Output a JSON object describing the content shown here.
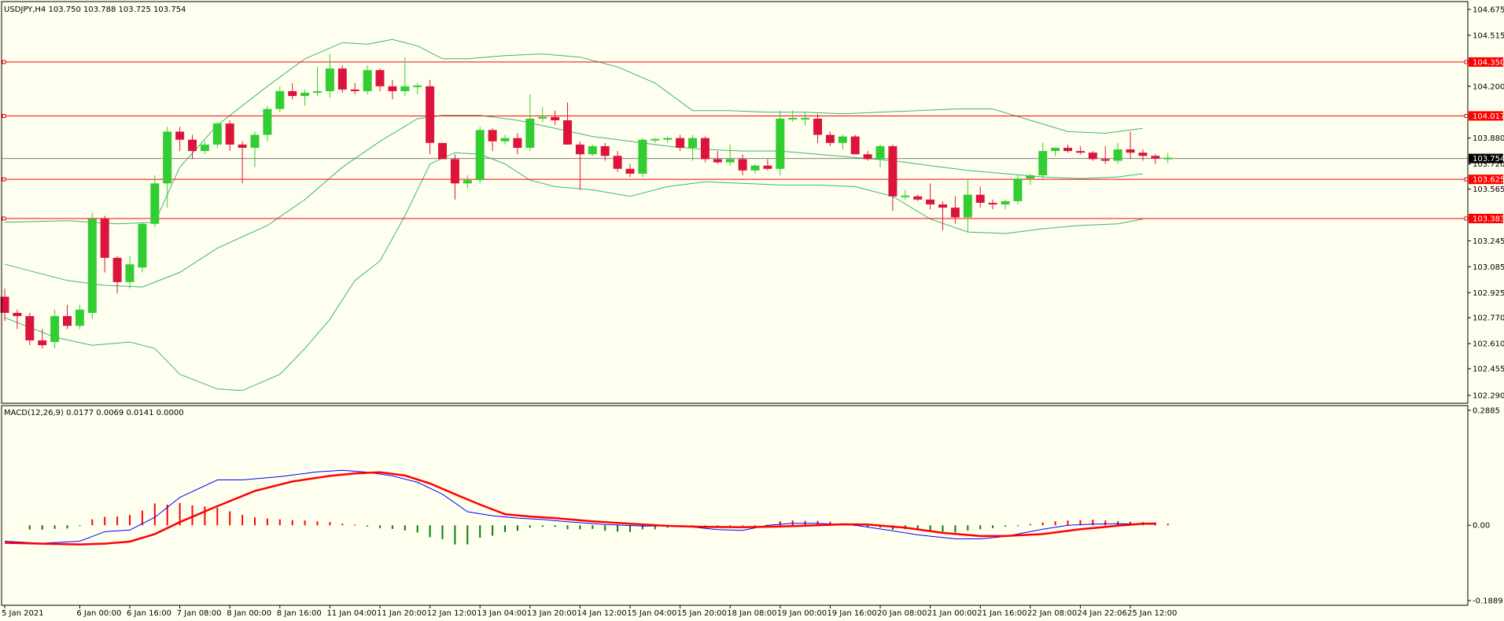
{
  "chart_data": {
    "type": "candlestick",
    "symbol_header": "USDJPY,H4  103.750 103.788 103.725 103.754",
    "macd_header": "MACD(12,26,9) 0.0177 0.0069 0.0141 0.0000",
    "price_ylim": [
      102.29,
      104.675
    ],
    "macd_ylim": [
      -0.1889,
      0.2885
    ],
    "price_ticks": [
      "104.675",
      "104.515",
      "104.350",
      "104.200",
      "104.017",
      "103.880",
      "103.720",
      "103.565",
      "103.383",
      "103.245",
      "103.085",
      "102.925",
      "102.770",
      "102.610",
      "102.455",
      "102.290"
    ],
    "macd_ticks": [
      "0.2885",
      "0.00",
      "-0.1889"
    ],
    "x_labels": [
      {
        "i": 0,
        "text": "5 Jan 2021"
      },
      {
        "i": 6,
        "text": "6 Jan 00:00"
      },
      {
        "i": 10,
        "text": "6 Jan 16:00"
      },
      {
        "i": 14,
        "text": "7 Jan 08:00"
      },
      {
        "i": 18,
        "text": "8 Jan 00:00"
      },
      {
        "i": 22,
        "text": "8 Jan 16:00"
      },
      {
        "i": 26,
        "text": "11 Jan 04:00"
      },
      {
        "i": 30,
        "text": "11 Jan 20:00"
      },
      {
        "i": 34,
        "text": "12 Jan 12:00"
      },
      {
        "i": 38,
        "text": "13 Jan 04:00"
      },
      {
        "i": 42,
        "text": "13 Jan 20:00"
      },
      {
        "i": 46,
        "text": "14 Jan 12:00"
      },
      {
        "i": 50,
        "text": "15 Jan 04:00"
      },
      {
        "i": 54,
        "text": "15 Jan 20:00"
      },
      {
        "i": 58,
        "text": "18 Jan 08:00"
      },
      {
        "i": 62,
        "text": "19 Jan 00:00"
      },
      {
        "i": 66,
        "text": "19 Jan 16:00"
      },
      {
        "i": 70,
        "text": "20 Jan 08:00"
      },
      {
        "i": 74,
        "text": "21 Jan 00:00"
      },
      {
        "i": 78,
        "text": "21 Jan 16:00"
      },
      {
        "i": 82,
        "text": "22 Jan 08:00"
      },
      {
        "i": 86,
        "text": "24 Jan 22:06"
      },
      {
        "i": 90,
        "text": "25 Jan 12:00"
      }
    ],
    "current_price": {
      "value": 103.754,
      "label": "103.754"
    },
    "horizontal_lines": [
      {
        "value": 104.35,
        "label": "104.350"
      },
      {
        "value": 104.017,
        "label": "104.017"
      },
      {
        "value": 103.625,
        "label": "103.625"
      },
      {
        "value": 103.383,
        "label": "103.383"
      }
    ],
    "candles": [
      [
        102.9,
        102.95,
        102.75,
        102.8
      ],
      [
        102.8,
        102.82,
        102.7,
        102.78
      ],
      [
        102.78,
        102.8,
        102.6,
        102.63
      ],
      [
        102.63,
        102.7,
        102.58,
        102.6
      ],
      [
        102.62,
        102.82,
        102.58,
        102.78
      ],
      [
        102.78,
        102.85,
        102.7,
        102.72
      ],
      [
        102.72,
        102.85,
        102.7,
        102.82
      ],
      [
        102.8,
        103.42,
        102.76,
        103.38
      ],
      [
        103.38,
        103.4,
        103.05,
        103.14
      ],
      [
        103.14,
        103.15,
        102.92,
        102.99
      ],
      [
        102.99,
        103.15,
        102.95,
        103.1
      ],
      [
        103.08,
        103.36,
        103.05,
        103.35
      ],
      [
        103.35,
        103.65,
        103.33,
        103.6
      ],
      [
        103.6,
        103.95,
        103.45,
        103.92
      ],
      [
        103.92,
        103.95,
        103.8,
        103.87
      ],
      [
        103.87,
        103.9,
        103.75,
        103.8
      ],
      [
        103.8,
        103.86,
        103.78,
        103.84
      ],
      [
        103.84,
        103.98,
        103.82,
        103.97
      ],
      [
        103.97,
        103.99,
        103.8,
        103.84
      ],
      [
        103.84,
        103.86,
        103.6,
        103.82
      ],
      [
        103.82,
        103.92,
        103.7,
        103.9
      ],
      [
        103.9,
        104.08,
        103.86,
        104.06
      ],
      [
        104.06,
        104.2,
        104.04,
        104.17
      ],
      [
        104.17,
        104.22,
        104.12,
        104.14
      ],
      [
        104.14,
        104.18,
        104.08,
        104.16
      ],
      [
        104.16,
        104.32,
        104.14,
        104.17
      ],
      [
        104.17,
        104.4,
        104.13,
        104.31
      ],
      [
        104.31,
        104.33,
        104.16,
        104.18
      ],
      [
        104.18,
        104.22,
        104.15,
        104.17
      ],
      [
        104.17,
        104.33,
        104.15,
        104.3
      ],
      [
        104.3,
        104.31,
        104.17,
        104.2
      ],
      [
        104.2,
        104.24,
        104.12,
        104.17
      ],
      [
        104.17,
        104.38,
        104.14,
        104.2
      ],
      [
        104.2,
        104.22,
        104.15,
        104.2
      ],
      [
        104.2,
        104.24,
        103.78,
        103.85
      ],
      [
        103.85,
        103.85,
        103.75,
        103.75
      ],
      [
        103.75,
        103.78,
        103.5,
        103.6
      ],
      [
        103.6,
        103.65,
        103.57,
        103.62
      ],
      [
        103.62,
        103.95,
        103.6,
        103.93
      ],
      [
        103.93,
        103.94,
        103.8,
        103.86
      ],
      [
        103.86,
        103.9,
        103.84,
        103.88
      ],
      [
        103.88,
        103.91,
        103.78,
        103.82
      ],
      [
        103.82,
        104.15,
        103.8,
        104.0
      ],
      [
        104.0,
        104.07,
        103.98,
        104.01
      ],
      [
        104.01,
        104.05,
        103.96,
        103.99
      ],
      [
        103.99,
        104.1,
        103.84,
        103.84
      ],
      [
        103.84,
        103.86,
        103.56,
        103.78
      ],
      [
        103.78,
        103.84,
        103.77,
        103.83
      ],
      [
        103.83,
        103.85,
        103.74,
        103.77
      ],
      [
        103.77,
        103.8,
        103.67,
        103.69
      ],
      [
        103.69,
        103.72,
        103.64,
        103.66
      ],
      [
        103.66,
        103.88,
        103.64,
        103.87
      ],
      [
        103.87,
        103.88,
        103.85,
        103.87
      ],
      [
        103.87,
        103.89,
        103.85,
        103.88
      ],
      [
        103.88,
        103.9,
        103.8,
        103.82
      ],
      [
        103.82,
        103.9,
        103.74,
        103.88
      ],
      [
        103.88,
        103.89,
        103.73,
        103.75
      ],
      [
        103.75,
        103.8,
        103.72,
        103.73
      ],
      [
        103.73,
        103.84,
        103.71,
        103.75
      ],
      [
        103.75,
        103.78,
        103.65,
        103.68
      ],
      [
        103.68,
        103.72,
        103.66,
        103.71
      ],
      [
        103.71,
        103.75,
        103.68,
        103.69
      ],
      [
        103.69,
        104.05,
        103.65,
        104.0
      ],
      [
        104.0,
        104.05,
        103.98,
        104.0
      ],
      [
        104.0,
        104.04,
        103.96,
        104.0
      ],
      [
        104.0,
        104.03,
        103.85,
        103.9
      ],
      [
        103.9,
        103.92,
        103.83,
        103.85
      ],
      [
        103.85,
        103.9,
        103.81,
        103.89
      ],
      [
        103.89,
        103.9,
        103.78,
        103.78
      ],
      [
        103.78,
        103.8,
        103.74,
        103.75
      ],
      [
        103.75,
        103.84,
        103.7,
        103.83
      ],
      [
        103.83,
        103.84,
        103.43,
        103.52
      ],
      [
        103.52,
        103.56,
        103.5,
        103.52
      ],
      [
        103.52,
        103.53,
        103.49,
        103.5
      ],
      [
        103.5,
        103.6,
        103.44,
        103.47
      ],
      [
        103.47,
        103.49,
        103.31,
        103.45
      ],
      [
        103.45,
        103.52,
        103.35,
        103.39
      ],
      [
        103.39,
        103.62,
        103.3,
        103.53
      ],
      [
        103.53,
        103.58,
        103.45,
        103.48
      ],
      [
        103.48,
        103.5,
        103.44,
        103.47
      ],
      [
        103.47,
        103.5,
        103.44,
        103.49
      ],
      [
        103.49,
        103.65,
        103.47,
        103.63
      ],
      [
        103.63,
        103.66,
        103.59,
        103.65
      ],
      [
        103.65,
        103.85,
        103.62,
        103.8
      ],
      [
        103.8,
        103.82,
        103.77,
        103.82
      ],
      [
        103.82,
        103.84,
        103.79,
        103.8
      ],
      [
        103.8,
        103.83,
        103.78,
        103.79
      ],
      [
        103.79,
        103.8,
        103.74,
        103.75
      ],
      [
        103.75,
        103.83,
        103.72,
        103.74
      ],
      [
        103.74,
        103.85,
        103.72,
        103.81
      ],
      [
        103.81,
        103.92,
        103.75,
        103.79
      ],
      [
        103.79,
        103.81,
        103.74,
        103.77
      ],
      [
        103.77,
        103.78,
        103.72,
        103.754
      ],
      [
        103.754,
        103.788,
        103.725,
        103.754
      ]
    ],
    "bb_upper": [
      [
        0,
        103.36
      ],
      [
        5,
        103.37
      ],
      [
        9,
        103.35
      ],
      [
        12,
        103.36
      ],
      [
        14,
        103.7
      ],
      [
        17,
        103.96
      ],
      [
        21,
        104.2
      ],
      [
        24,
        104.37
      ],
      [
        27,
        104.47
      ],
      [
        29,
        104.46
      ],
      [
        31,
        104.49
      ],
      [
        33,
        104.45
      ],
      [
        35,
        104.37
      ],
      [
        37,
        104.37
      ],
      [
        40,
        104.39
      ],
      [
        43,
        104.4
      ],
      [
        46,
        104.38
      ],
      [
        49,
        104.32
      ],
      [
        52,
        104.22
      ],
      [
        55,
        104.05
      ],
      [
        58,
        104.05
      ],
      [
        61,
        104.04
      ],
      [
        64,
        104.04
      ],
      [
        67,
        104.03
      ],
      [
        70,
        104.04
      ],
      [
        73,
        104.05
      ],
      [
        76,
        104.06
      ],
      [
        79,
        104.06
      ],
      [
        82,
        103.99
      ],
      [
        85,
        103.92
      ],
      [
        88,
        103.91
      ],
      [
        91,
        103.94
      ]
    ],
    "bb_middle": [
      [
        0,
        103.1
      ],
      [
        5,
        103.0
      ],
      [
        8,
        102.97
      ],
      [
        11,
        102.96
      ],
      [
        14,
        103.05
      ],
      [
        17,
        103.2
      ],
      [
        21,
        103.34
      ],
      [
        24,
        103.5
      ],
      [
        27,
        103.7
      ],
      [
        30,
        103.86
      ],
      [
        33,
        104.0
      ],
      [
        35,
        104.02
      ],
      [
        38,
        104.02
      ],
      [
        41,
        103.99
      ],
      [
        44,
        103.94
      ],
      [
        47,
        103.89
      ],
      [
        50,
        103.86
      ],
      [
        53,
        103.83
      ],
      [
        56,
        103.81
      ],
      [
        59,
        103.8
      ],
      [
        62,
        103.8
      ],
      [
        65,
        103.78
      ],
      [
        68,
        103.76
      ],
      [
        71,
        103.74
      ],
      [
        74,
        103.71
      ],
      [
        77,
        103.68
      ],
      [
        80,
        103.66
      ],
      [
        83,
        103.64
      ],
      [
        86,
        103.63
      ],
      [
        89,
        103.64
      ],
      [
        91,
        103.66
      ]
    ],
    "bb_lower": [
      [
        0,
        102.77
      ],
      [
        4,
        102.65
      ],
      [
        7,
        102.6
      ],
      [
        10,
        102.62
      ],
      [
        12,
        102.58
      ],
      [
        14,
        102.42
      ],
      [
        17,
        102.33
      ],
      [
        19,
        102.32
      ],
      [
        22,
        102.42
      ],
      [
        24,
        102.58
      ],
      [
        26,
        102.76
      ],
      [
        28,
        103.0
      ],
      [
        30,
        103.12
      ],
      [
        32,
        103.4
      ],
      [
        34,
        103.72
      ],
      [
        36,
        103.79
      ],
      [
        38,
        103.78
      ],
      [
        40,
        103.72
      ],
      [
        42,
        103.62
      ],
      [
        44,
        103.58
      ],
      [
        47,
        103.56
      ],
      [
        50,
        103.52
      ],
      [
        53,
        103.58
      ],
      [
        56,
        103.61
      ],
      [
        59,
        103.6
      ],
      [
        62,
        103.59
      ],
      [
        65,
        103.59
      ],
      [
        68,
        103.58
      ],
      [
        71,
        103.52
      ],
      [
        74,
        103.38
      ],
      [
        77,
        103.3
      ],
      [
        80,
        103.29
      ],
      [
        83,
        103.32
      ],
      [
        86,
        103.34
      ],
      [
        89,
        103.35
      ],
      [
        91,
        103.38
      ]
    ],
    "macd_hist": [
      -0.0004,
      -0.0004,
      -0.011,
      -0.011,
      -0.009,
      -0.008,
      -0.002,
      0.015,
      0.021,
      0.022,
      0.026,
      0.037,
      0.055,
      0.052,
      0.056,
      0.05,
      0.047,
      0.044,
      0.035,
      0.026,
      0.02,
      0.017,
      0.015,
      0.013,
      0.012,
      0.01,
      0.008,
      0.004,
      0.002,
      -0.003,
      -0.007,
      -0.009,
      -0.013,
      -0.018,
      -0.03,
      -0.035,
      -0.048,
      -0.048,
      -0.031,
      -0.026,
      -0.017,
      -0.014,
      -0.006,
      -0.004,
      -0.004,
      -0.01,
      -0.01,
      -0.009,
      -0.014,
      -0.016,
      -0.017,
      -0.01,
      -0.01,
      -0.006,
      -0.003,
      -0.003,
      -0.002,
      -0.002,
      -0.002,
      -0.002,
      -0.002,
      0.001,
      0.01,
      0.012,
      0.011,
      0.011,
      0.009,
      0.001,
      -0.002,
      -0.005,
      -0.006,
      -0.011,
      -0.01,
      -0.012,
      -0.014,
      -0.016,
      -0.018,
      -0.013,
      -0.01,
      -0.007,
      -0.003,
      -0.002,
      0.003,
      0.007,
      0.01,
      0.012,
      0.013,
      0.014,
      0.012,
      0.01,
      0.009,
      0.008,
      0.007,
      0.004
    ],
    "macd_line": [
      [
        0,
        -0.04
      ],
      [
        3,
        -0.045
      ],
      [
        6,
        -0.04
      ],
      [
        8,
        -0.016
      ],
      [
        10,
        -0.012
      ],
      [
        12,
        0.02
      ],
      [
        14,
        0.07
      ],
      [
        17,
        0.114
      ],
      [
        19,
        0.114
      ],
      [
        22,
        0.122
      ],
      [
        25,
        0.134
      ],
      [
        27,
        0.138
      ],
      [
        29,
        0.133
      ],
      [
        31,
        0.124
      ],
      [
        33,
        0.108
      ],
      [
        35,
        0.078
      ],
      [
        37,
        0.034
      ],
      [
        39,
        0.024
      ],
      [
        41,
        0.018
      ],
      [
        43,
        0.0145
      ],
      [
        45,
        0.009
      ],
      [
        48,
        0.002
      ],
      [
        51,
        -0.002
      ],
      [
        54,
        -0.001
      ],
      [
        57,
        -0.011
      ],
      [
        59,
        -0.013
      ],
      [
        61,
        0.0
      ],
      [
        63,
        0.005
      ],
      [
        65,
        0.005
      ],
      [
        68,
        0.0
      ],
      [
        71,
        -0.014
      ],
      [
        73,
        -0.024
      ],
      [
        76,
        -0.034
      ],
      [
        78,
        -0.034
      ],
      [
        80,
        -0.028
      ],
      [
        83,
        -0.01
      ],
      [
        85,
        0.0
      ],
      [
        87,
        0.003
      ],
      [
        89,
        0.004
      ],
      [
        91,
        0.0035
      ],
      [
        92,
        0.0025
      ]
    ],
    "signal_line": [
      [
        0,
        -0.044
      ],
      [
        3,
        -0.046
      ],
      [
        6,
        -0.048
      ],
      [
        8,
        -0.046
      ],
      [
        10,
        -0.041
      ],
      [
        12,
        -0.022
      ],
      [
        14,
        0.008
      ],
      [
        17,
        0.048
      ],
      [
        20,
        0.086
      ],
      [
        23,
        0.11
      ],
      [
        26,
        0.124
      ],
      [
        28,
        0.13
      ],
      [
        30,
        0.133
      ],
      [
        32,
        0.125
      ],
      [
        34,
        0.105
      ],
      [
        36,
        0.078
      ],
      [
        38,
        0.052
      ],
      [
        40,
        0.028
      ],
      [
        42,
        0.022
      ],
      [
        44,
        0.018
      ],
      [
        47,
        0.01
      ],
      [
        50,
        0.004
      ],
      [
        53,
        -0.0015
      ],
      [
        56,
        -0.004
      ],
      [
        59,
        -0.005
      ],
      [
        62,
        -0.003
      ],
      [
        65,
        0.0
      ],
      [
        67,
        0.0025
      ],
      [
        69,
        0.002
      ],
      [
        72,
        -0.006
      ],
      [
        75,
        -0.019
      ],
      [
        78,
        -0.027
      ],
      [
        80,
        -0.027
      ],
      [
        83,
        -0.022
      ],
      [
        86,
        -0.01
      ],
      [
        89,
        -0.001
      ],
      [
        91,
        0.004
      ],
      [
        92,
        0.0045
      ]
    ],
    "colors": {
      "bull": "#32cd32",
      "bear": "#dc143c",
      "bollinger": "#3cb371",
      "hline": "#ff0000",
      "macd": "#0000ff",
      "signal": "#ff0000",
      "hist_pos": "#ff0000",
      "hist_neg": "#008000",
      "background": "#fffff0",
      "current_price_bg": "#000000"
    }
  }
}
